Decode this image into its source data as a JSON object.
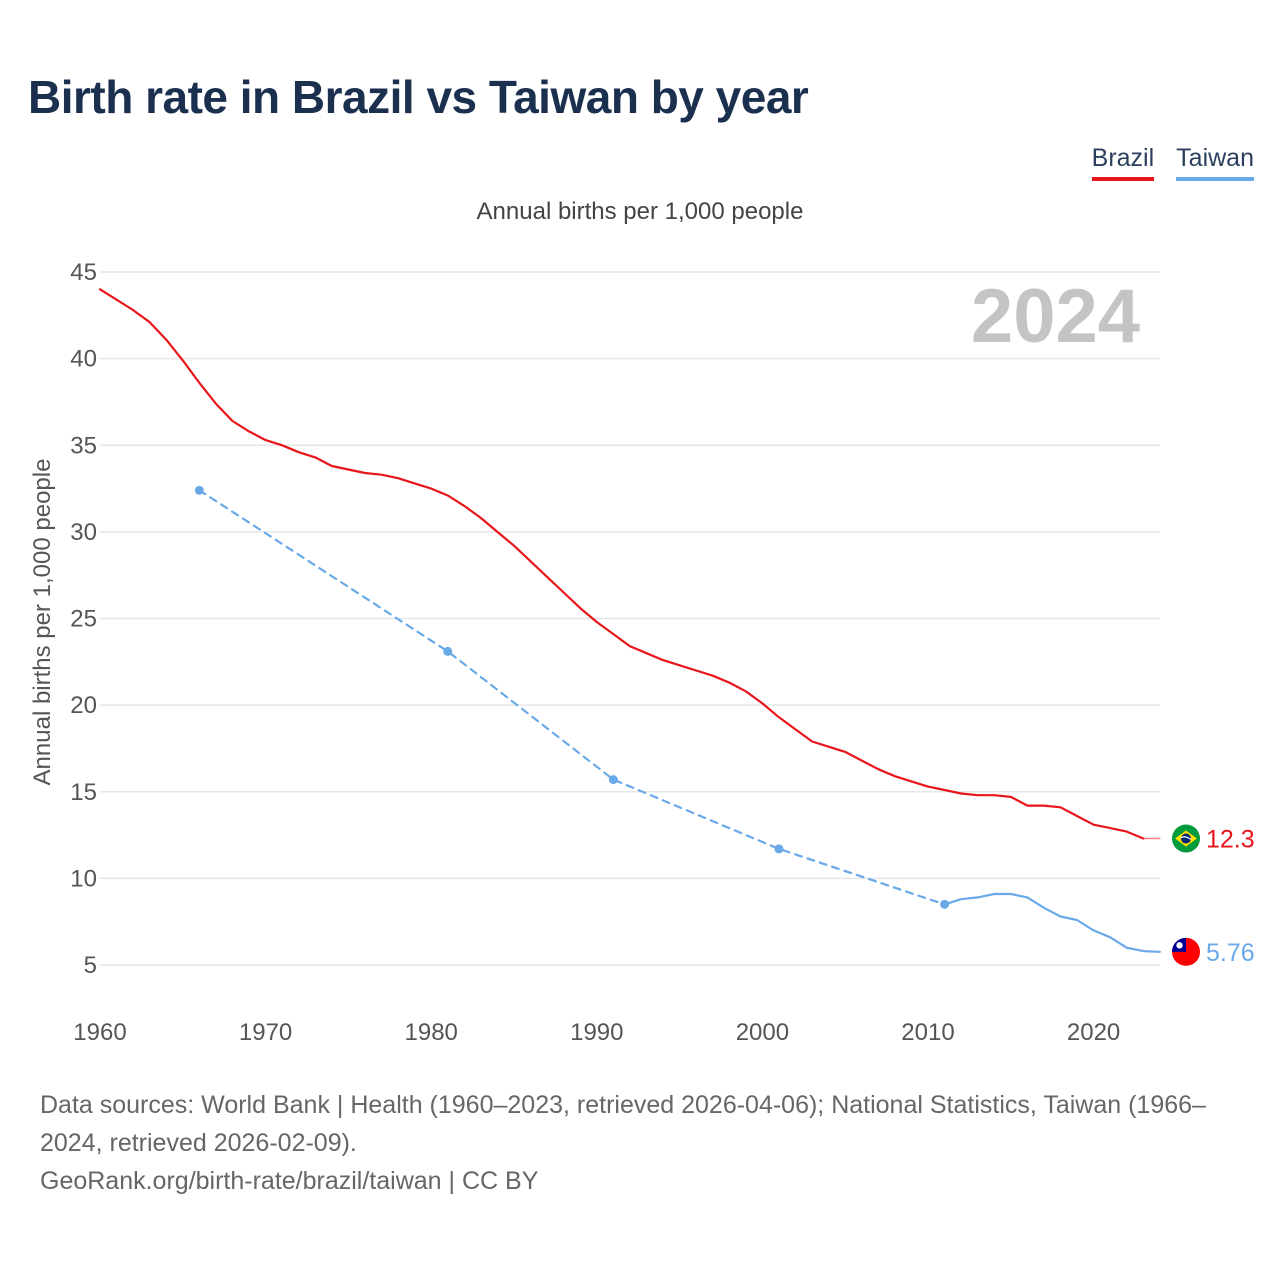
{
  "title": "Birth rate in Brazil vs Taiwan by year",
  "subtitle": "Annual births per 1,000 people",
  "sources": "Data sources: World Bank | Health (1960–2023, retrieved 2026-04-06); National Statistics, Taiwan (1966–2024, retrieved 2026-02-09).",
  "credit": "GeoRank.org/birth-rate/brazil/taiwan | CC BY",
  "chart_data": {
    "type": "line",
    "title": "Birth rate in Brazil vs Taiwan by year",
    "ylabel": "Annual births per 1,000 people",
    "xlabel": "",
    "year_label": "2024",
    "xlim": [
      1960,
      2024
    ],
    "ylim": [
      2.5,
      46
    ],
    "x_ticks": [
      1960,
      1970,
      1980,
      1990,
      2000,
      2010,
      2020
    ],
    "y_ticks": [
      5,
      10,
      15,
      20,
      25,
      30,
      35,
      40,
      45
    ],
    "grid": true,
    "legend_position": "top-right",
    "series": [
      {
        "name": "Brazil",
        "color": "#e8151b",
        "end_label": "12.3",
        "flag": "brazil-flag-icon",
        "segments": [
          {
            "style": "solid",
            "points": [
              [
                1960,
                44.0
              ],
              [
                1961,
                43.4
              ],
              [
                1962,
                42.8
              ],
              [
                1963,
                42.1
              ],
              [
                1964,
                41.1
              ],
              [
                1965,
                39.9
              ],
              [
                1966,
                38.6
              ],
              [
                1967,
                37.4
              ],
              [
                1968,
                36.4
              ],
              [
                1969,
                35.8
              ],
              [
                1970,
                35.3
              ],
              [
                1971,
                35.0
              ],
              [
                1972,
                34.6
              ],
              [
                1973,
                34.3
              ],
              [
                1974,
                33.8
              ],
              [
                1975,
                33.6
              ],
              [
                1976,
                33.4
              ],
              [
                1977,
                33.3
              ],
              [
                1978,
                33.1
              ],
              [
                1979,
                32.8
              ],
              [
                1980,
                32.5
              ],
              [
                1981,
                32.1
              ],
              [
                1982,
                31.5
              ],
              [
                1983,
                30.8
              ],
              [
                1984,
                30.0
              ],
              [
                1985,
                29.2
              ],
              [
                1986,
                28.3
              ],
              [
                1987,
                27.4
              ],
              [
                1988,
                26.5
              ],
              [
                1989,
                25.6
              ],
              [
                1990,
                24.8
              ],
              [
                1991,
                24.1
              ],
              [
                1992,
                23.4
              ],
              [
                1993,
                23.0
              ],
              [
                1994,
                22.6
              ],
              [
                1995,
                22.3
              ],
              [
                1996,
                22.0
              ],
              [
                1997,
                21.7
              ],
              [
                1998,
                21.3
              ],
              [
                1999,
                20.8
              ],
              [
                2000,
                20.1
              ],
              [
                2001,
                19.3
              ],
              [
                2002,
                18.6
              ],
              [
                2003,
                17.9
              ],
              [
                2004,
                17.6
              ],
              [
                2005,
                17.3
              ],
              [
                2006,
                16.8
              ],
              [
                2007,
                16.3
              ],
              [
                2008,
                15.9
              ],
              [
                2009,
                15.6
              ],
              [
                2010,
                15.3
              ],
              [
                2011,
                15.1
              ],
              [
                2012,
                14.9
              ],
              [
                2013,
                14.8
              ],
              [
                2014,
                14.8
              ],
              [
                2015,
                14.7
              ],
              [
                2016,
                14.2
              ],
              [
                2017,
                14.2
              ],
              [
                2018,
                14.1
              ],
              [
                2019,
                13.6
              ],
              [
                2020,
                13.1
              ],
              [
                2021,
                12.9
              ],
              [
                2022,
                12.7
              ],
              [
                2023,
                12.3
              ]
            ]
          },
          {
            "style": "solid-light",
            "points": [
              [
                2023,
                12.3
              ],
              [
                2024,
                12.3
              ]
            ]
          }
        ],
        "markers": []
      },
      {
        "name": "Taiwan",
        "color": "#6aa9e8",
        "end_label": "5.76",
        "flag": "taiwan-flag-icon",
        "segments": [
          {
            "style": "dashed",
            "points": [
              [
                1966,
                32.4
              ],
              [
                1981,
                23.1
              ],
              [
                1991,
                15.7
              ],
              [
                2001,
                11.7
              ],
              [
                2011,
                8.5
              ]
            ]
          },
          {
            "style": "solid",
            "points": [
              [
                2011,
                8.5
              ],
              [
                2012,
                8.8
              ],
              [
                2013,
                8.9
              ],
              [
                2014,
                9.1
              ],
              [
                2015,
                9.1
              ],
              [
                2016,
                8.9
              ],
              [
                2017,
                8.3
              ],
              [
                2018,
                7.8
              ],
              [
                2019,
                7.6
              ],
              [
                2020,
                7.0
              ],
              [
                2021,
                6.6
              ],
              [
                2022,
                6.0
              ],
              [
                2023,
                5.8
              ],
              [
                2024,
                5.76
              ]
            ]
          }
        ],
        "markers": [
          [
            1966,
            32.4
          ],
          [
            1981,
            23.1
          ],
          [
            1991,
            15.7
          ],
          [
            2001,
            11.7
          ],
          [
            2011,
            8.5
          ]
        ]
      }
    ]
  }
}
